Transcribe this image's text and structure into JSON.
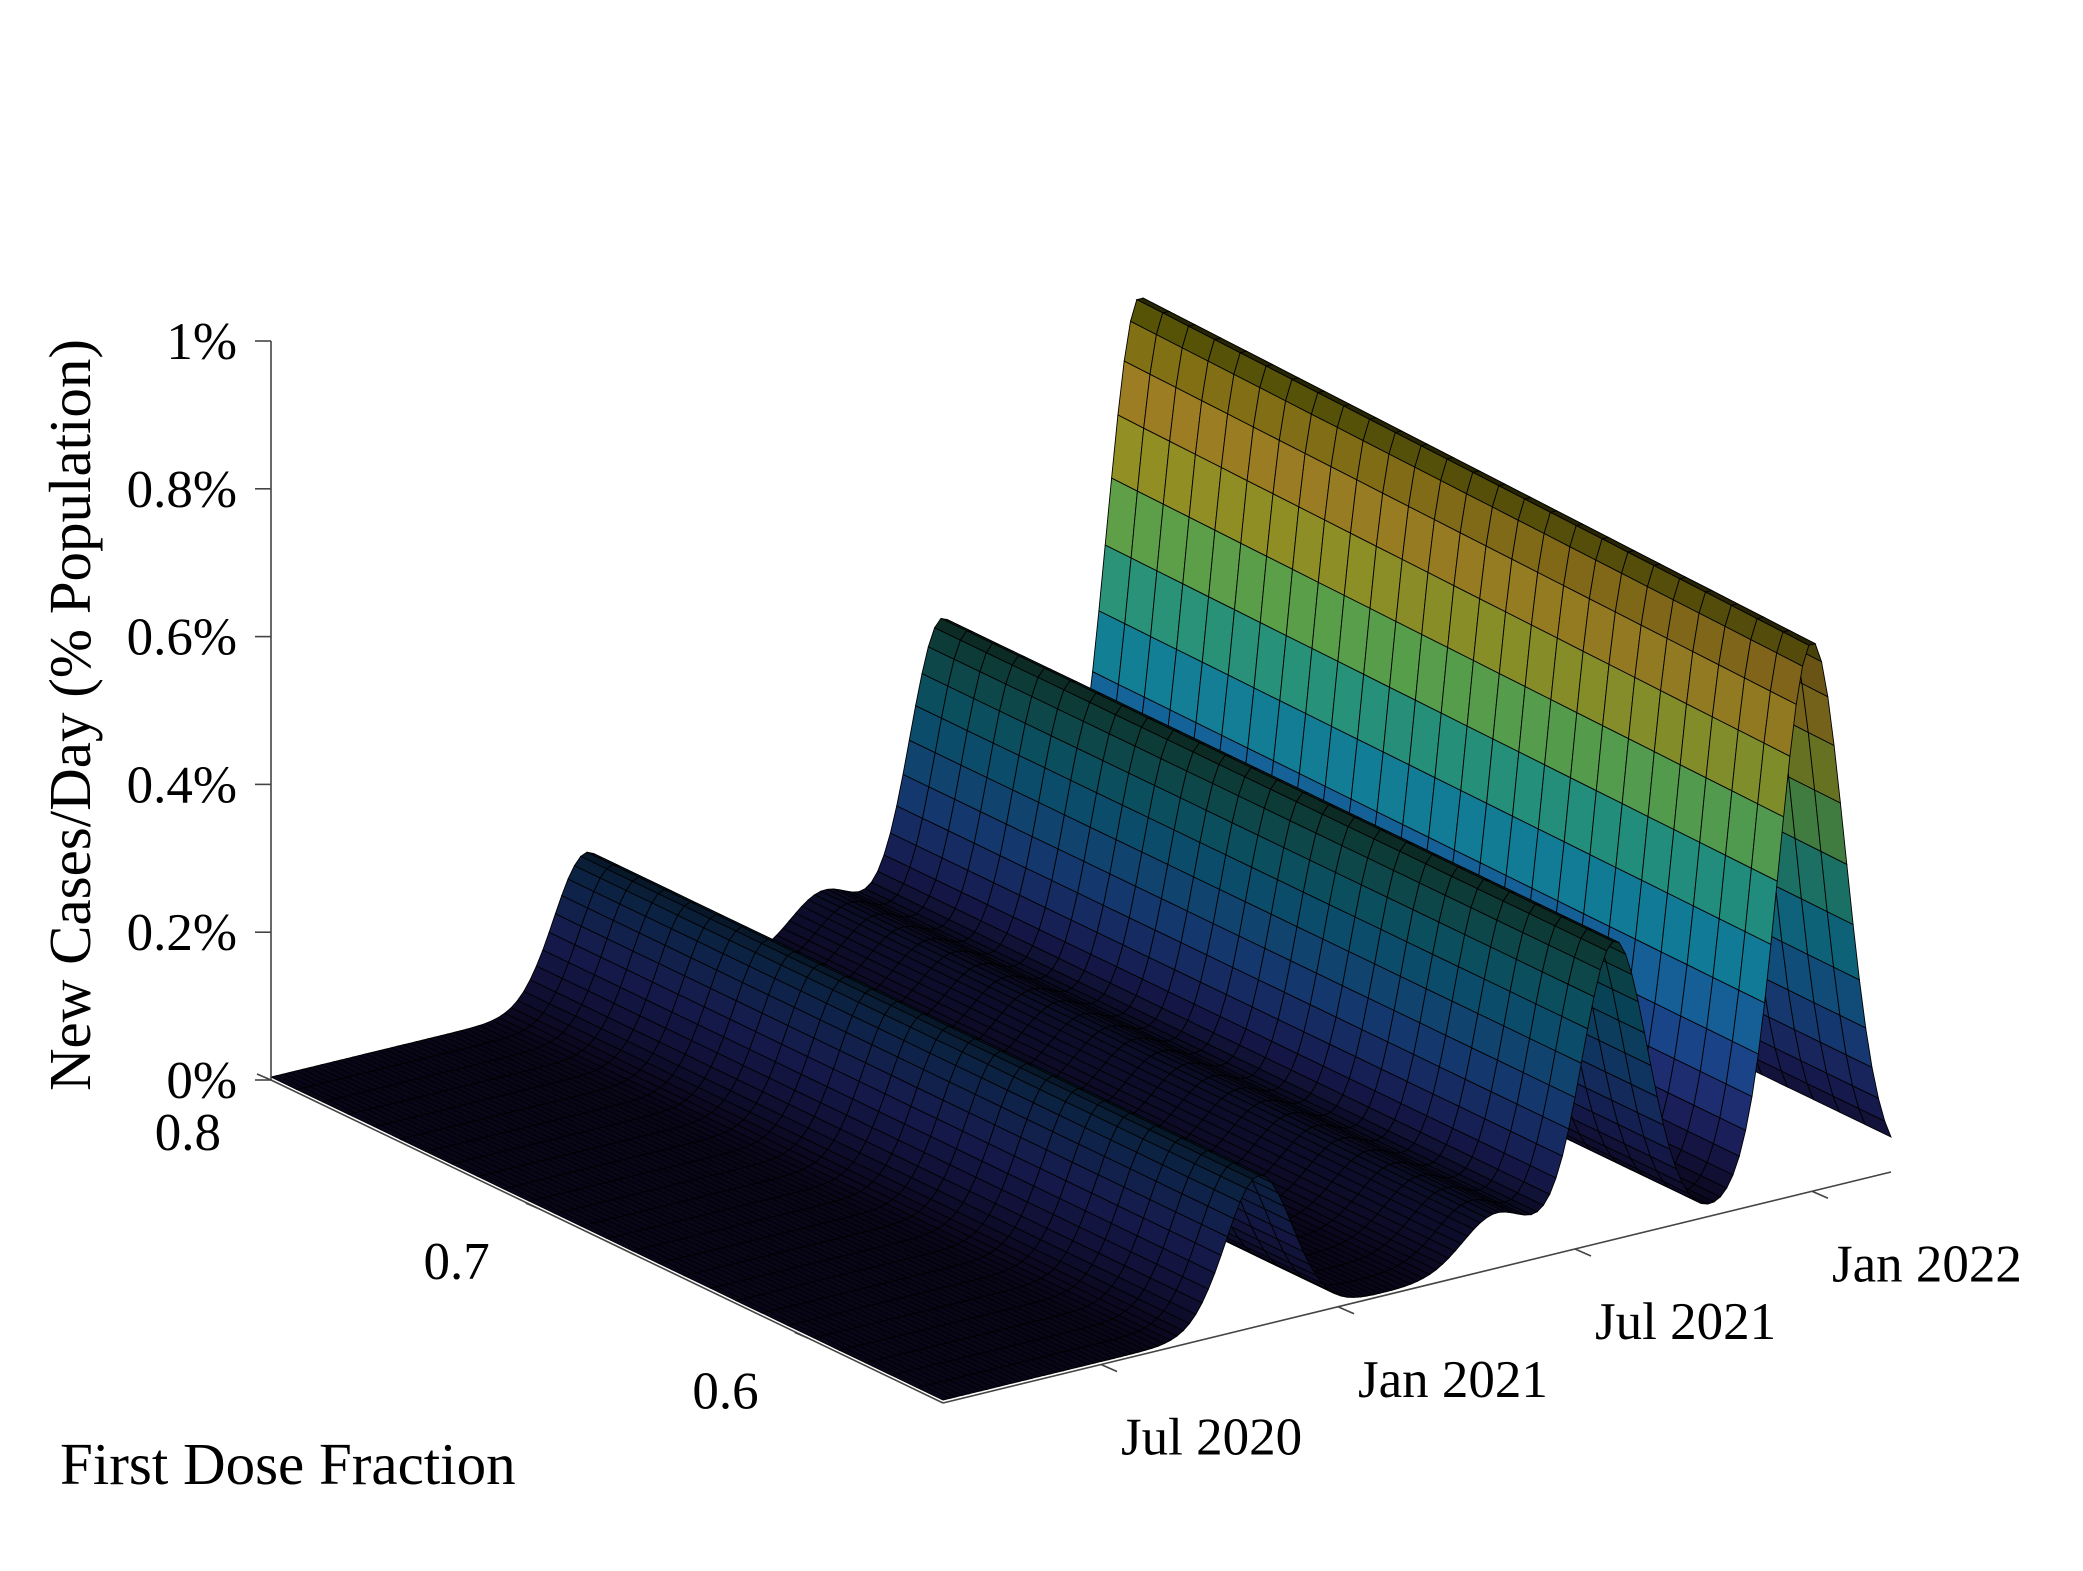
{
  "chart_data": {
    "type": "surface",
    "colormap": "parula",
    "xlabel": "",
    "ylabel": "First Dose Fraction",
    "zlabel": "New Cases/Day (% Population)",
    "x_ticks": [
      "Jul 2020",
      "Jan 2021",
      "Jul 2021",
      "Jan 2022"
    ],
    "y_ticks": [
      "0.6",
      "0.7",
      "0.8"
    ],
    "z_ticks": [
      "0%",
      "0.2%",
      "0.4%",
      "0.6%",
      "0.8%",
      "1%"
    ],
    "xlim": [
      "2020-03",
      "2022-03"
    ],
    "ylim": [
      0.55,
      0.8
    ],
    "zlim": [
      0,
      1
    ],
    "grid": false,
    "legend": "none",
    "waves": [
      {
        "peak_date": "2020-11",
        "peak_percent": 0.2
      },
      {
        "peak_date": "2021-05",
        "peak_percent": 0.07
      },
      {
        "peak_date": "2021-08",
        "peak_percent": 0.4
      },
      {
        "peak_date": "2022-01",
        "peak_percent": 0.77
      }
    ]
  }
}
